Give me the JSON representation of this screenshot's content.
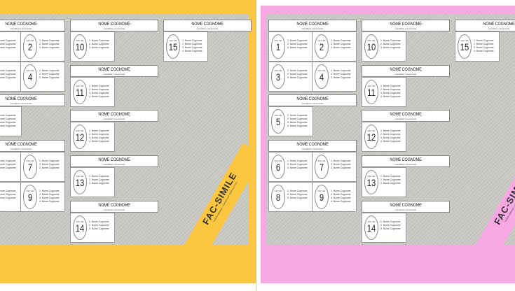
{
  "colors": {
    "left_panel": "#fcc63e",
    "right_panel": "#f7a8e2",
    "ballot_background": "#c9c7c2"
  },
  "ballot": {
    "header_title": "NOME COGNOME",
    "header_subtitle": "Candidato uninominale",
    "mark_label": "FAC SE",
    "candidate_name": "Nome Cognome",
    "watermark": "FAC-SIMILE",
    "watermark_note": "Scheda elettorale - esempio non valido per il voto",
    "parties": [
      {
        "number": "1",
        "candidates": 3
      },
      {
        "number": "2",
        "candidates": 3
      },
      {
        "number": "3",
        "candidates": 3
      },
      {
        "number": "4",
        "candidates": 3
      },
      {
        "number": "5",
        "candidates": 4
      },
      {
        "number": "6",
        "candidates": 3
      },
      {
        "number": "7",
        "candidates": 3
      },
      {
        "number": "8",
        "candidates": 3
      },
      {
        "number": "9",
        "candidates": 4
      },
      {
        "number": "10",
        "candidates": 3
      },
      {
        "number": "11",
        "candidates": 4
      },
      {
        "number": "12",
        "candidates": 4
      },
      {
        "number": "13",
        "candidates": 3
      },
      {
        "number": "14",
        "candidates": 3
      },
      {
        "number": "15",
        "candidates": 4
      }
    ]
  }
}
